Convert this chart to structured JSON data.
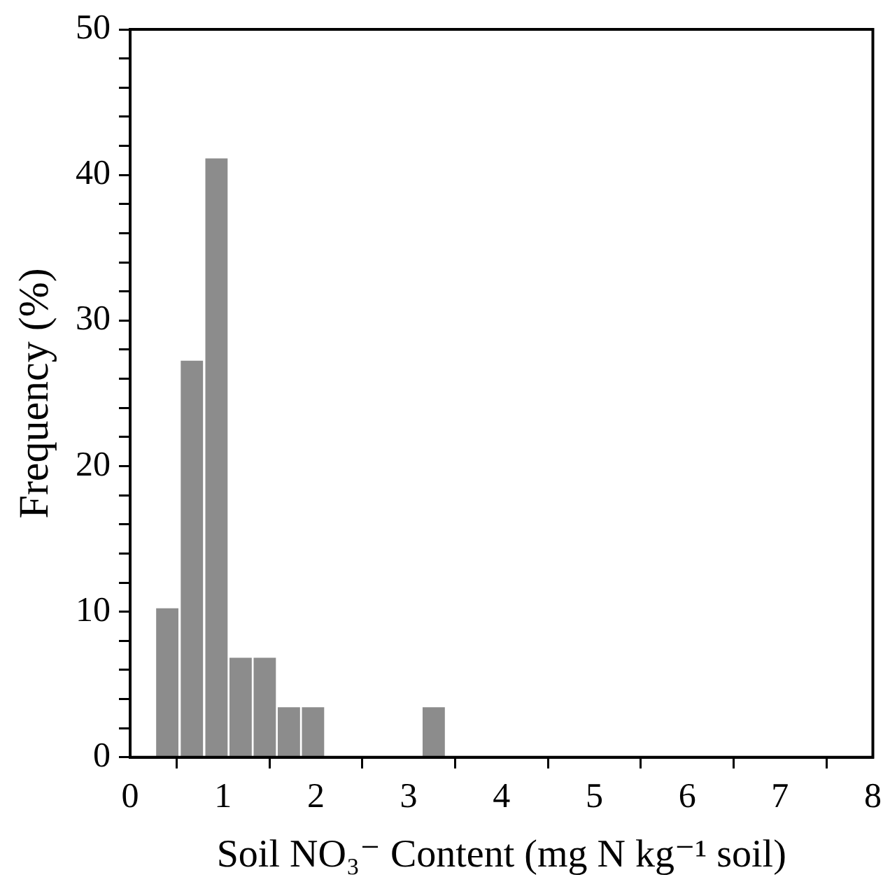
{
  "chart_data": {
    "type": "histogram",
    "xlabel": "Soil NO₃⁻ Content (mg N kg⁻¹ soil)",
    "ylabel": "Frequency (%)",
    "bins": [
      0.27,
      0.53,
      0.8,
      1.06,
      1.32,
      1.58,
      1.84,
      2.1,
      2.36,
      2.62,
      2.88,
      3.14,
      3.4
    ],
    "values": [
      10.3,
      27.3,
      41.2,
      6.9,
      6.9,
      3.5,
      3.5,
      0,
      0,
      0,
      0,
      3.5
    ],
    "color": "#8c8c8c",
    "xlim": [
      0,
      8
    ],
    "xticks": [
      0,
      1,
      2,
      3,
      4,
      5,
      6,
      7,
      8
    ],
    "ylim": [
      0,
      50
    ],
    "yticks": [
      0,
      {
        "value": 2,
        "label": null
      },
      {
        "value": 4,
        "label": null
      },
      {
        "value": 6,
        "label": null
      },
      {
        "value": 8,
        "label": null
      },
      10,
      {
        "value": 12,
        "label": null
      },
      {
        "value": 14,
        "label": null
      },
      {
        "value": 16,
        "label": null
      },
      {
        "value": 18,
        "label": null
      },
      20,
      {
        "value": 22,
        "label": null
      },
      {
        "value": 24,
        "label": null
      },
      {
        "value": 26,
        "label": null
      },
      {
        "value": 28,
        "label": null
      },
      30,
      {
        "value": 32,
        "label": null
      },
      {
        "value": 34,
        "label": null
      },
      {
        "value": 36,
        "label": null
      },
      {
        "value": 38,
        "label": null
      },
      40,
      {
        "value": 42,
        "label": null
      },
      {
        "value": 44,
        "label": null
      },
      {
        "value": 46,
        "label": null
      },
      {
        "value": 48,
        "label": null
      },
      50
    ],
    "grid": false,
    "legend": false
  }
}
